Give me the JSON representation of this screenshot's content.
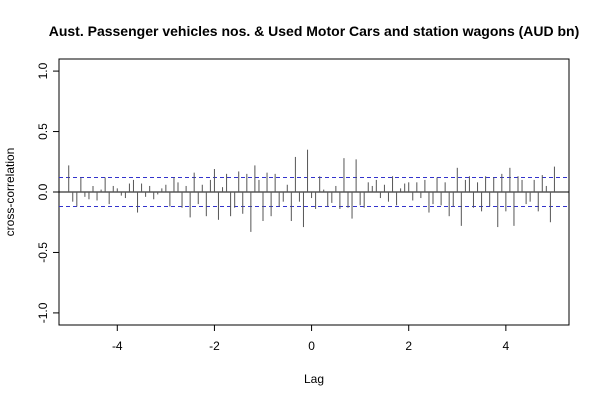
{
  "chart_data": {
    "type": "bar",
    "title": "Aust. Passenger vehicles nos. & Used Motor Cars and station wagons (AUD bn)",
    "xlabel": "Lag",
    "ylabel": "cross-correlation",
    "xlim": [
      -5.2,
      5.3
    ],
    "ylim": [
      -1.1,
      1.1
    ],
    "xticks": [
      -4,
      -2,
      0,
      2,
      4
    ],
    "yticks": [
      -1.0,
      -0.5,
      0.0,
      0.5,
      1.0
    ],
    "ci": 0.12,
    "grid": false,
    "colors": {
      "bars": "#555555",
      "zero_line": "#000000",
      "ci_lines": "#3333cc",
      "frame": "#000000"
    },
    "x": [
      -5.0,
      -4.917,
      -4.833,
      -4.75,
      -4.667,
      -4.583,
      -4.5,
      -4.417,
      -4.333,
      -4.25,
      -4.167,
      -4.083,
      -4.0,
      -3.917,
      -3.833,
      -3.75,
      -3.667,
      -3.583,
      -3.5,
      -3.417,
      -3.333,
      -3.25,
      -3.167,
      -3.083,
      -3.0,
      -2.917,
      -2.833,
      -2.75,
      -2.667,
      -2.583,
      -2.5,
      -2.417,
      -2.333,
      -2.25,
      -2.167,
      -2.083,
      -2.0,
      -1.917,
      -1.833,
      -1.75,
      -1.667,
      -1.583,
      -1.5,
      -1.417,
      -1.333,
      -1.25,
      -1.167,
      -1.083,
      -1.0,
      -0.917,
      -0.833,
      -0.75,
      -0.667,
      -0.583,
      -0.5,
      -0.417,
      -0.333,
      -0.25,
      -0.167,
      -0.083,
      0.0,
      0.083,
      0.167,
      0.25,
      0.333,
      0.417,
      0.5,
      0.583,
      0.667,
      0.75,
      0.833,
      0.917,
      1.0,
      1.083,
      1.167,
      1.25,
      1.333,
      1.417,
      1.5,
      1.583,
      1.667,
      1.75,
      1.833,
      1.917,
      2.0,
      2.083,
      2.167,
      2.25,
      2.333,
      2.417,
      2.5,
      2.583,
      2.667,
      2.75,
      2.833,
      2.917,
      3.0,
      3.083,
      3.167,
      3.25,
      3.333,
      3.417,
      3.5,
      3.583,
      3.667,
      3.75,
      3.833,
      3.917,
      4.0,
      4.083,
      4.167,
      4.25,
      4.333,
      4.417,
      4.5,
      4.583,
      4.667,
      4.75,
      4.833,
      4.917,
      5.0
    ],
    "values": [
      0.22,
      -0.08,
      -0.12,
      0.12,
      -0.04,
      -0.06,
      0.05,
      -0.07,
      0.02,
      0.12,
      -0.1,
      0.05,
      0.03,
      -0.03,
      -0.05,
      0.07,
      0.1,
      -0.17,
      0.07,
      -0.04,
      0.05,
      -0.06,
      -0.02,
      0.03,
      0.06,
      -0.12,
      0.12,
      0.08,
      -0.13,
      0.05,
      -0.21,
      0.16,
      -0.1,
      0.06,
      -0.2,
      0.1,
      0.19,
      -0.23,
      0.04,
      0.15,
      -0.2,
      -0.13,
      0.17,
      -0.18,
      0.15,
      -0.33,
      0.22,
      0.1,
      -0.24,
      0.16,
      -0.2,
      0.15,
      -0.12,
      -0.08,
      0.06,
      -0.24,
      0.29,
      -0.08,
      -0.29,
      0.35,
      -0.05,
      -0.14,
      0.13,
      0.02,
      -0.12,
      -0.09,
      0.05,
      -0.14,
      0.28,
      -0.13,
      -0.22,
      0.27,
      -0.11,
      -0.13,
      0.08,
      0.05,
      0.1,
      -0.05,
      0.06,
      -0.08,
      0.13,
      -0.11,
      0.03,
      0.07,
      0.08,
      -0.07,
      0.08,
      -0.05,
      0.1,
      -0.17,
      -0.1,
      0.12,
      -0.11,
      0.08,
      -0.2,
      -0.12,
      0.2,
      -0.28,
      0.1,
      0.13,
      -0.13,
      0.08,
      -0.16,
      0.13,
      -0.12,
      0.12,
      -0.29,
      0.15,
      -0.16,
      0.2,
      -0.28,
      0.13,
      0.1,
      -0.1,
      -0.08,
      0.1,
      -0.16,
      0.14,
      0.05,
      -0.25,
      0.21
    ]
  }
}
